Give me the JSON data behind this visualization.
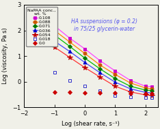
{
  "title_right": "HA suspensions (φ = 0.2)\nin 75/25 glycerin-water",
  "xlabel": "Log (shear rate, s⁻¹)",
  "ylabel": "Log (viscosity, Pa s)",
  "xlim": [
    -2,
    2.4
  ],
  "ylim": [
    -1,
    3
  ],
  "legend_title": "NaPAA conc.,\n     wt. %",
  "series": [
    {
      "label": "0.108",
      "marker_color": "#cc00cc",
      "line_color": "#ff44ff",
      "marker": "s",
      "filled": true,
      "has_line": true,
      "x": [
        -1.0,
        -0.5,
        0.0,
        0.5,
        1.0,
        1.5,
        2.0,
        2.2
      ],
      "y": [
        2.18,
        1.7,
        1.28,
        0.82,
        0.42,
        0.05,
        -0.18,
        -0.2
      ]
    },
    {
      "label": "0.088",
      "marker_color": "#cc5500",
      "line_color": "#ff8800",
      "marker": "o",
      "filled": true,
      "has_line": true,
      "x": [
        -1.0,
        -0.5,
        0.0,
        0.5,
        1.0,
        1.5,
        2.0,
        2.2
      ],
      "y": [
        2.0,
        1.55,
        1.1,
        0.65,
        0.28,
        -0.05,
        -0.25,
        -0.28
      ]
    },
    {
      "label": "0.071",
      "marker_color": "#007700",
      "line_color": "#00bb00",
      "marker": "D",
      "filled": true,
      "has_line": true,
      "x": [
        -1.0,
        -0.5,
        0.0,
        0.5,
        1.0,
        1.5,
        2.0,
        2.2
      ],
      "y": [
        1.82,
        1.38,
        0.92,
        0.5,
        0.12,
        -0.18,
        -0.33,
        -0.35
      ]
    },
    {
      "label": "0.036",
      "marker_color": "#0000cc",
      "line_color": "#4444ff",
      "marker": "^",
      "filled": true,
      "has_line": true,
      "x": [
        -1.0,
        -0.5,
        0.0,
        0.5,
        1.0,
        1.5,
        2.0,
        2.2
      ],
      "y": [
        1.58,
        1.18,
        0.75,
        0.35,
        -0.02,
        -0.28,
        -0.42,
        -0.44
      ]
    },
    {
      "label": "0.054",
      "marker_color": "#bb0000",
      "line_color": "#ff3333",
      "marker": "*",
      "filled": true,
      "has_line": true,
      "x": [
        -1.0,
        -0.5,
        0.0,
        0.5,
        1.0,
        1.5,
        2.0,
        2.2
      ],
      "y": [
        1.35,
        0.95,
        0.55,
        0.18,
        -0.18,
        -0.4,
        -0.52,
        -0.54
      ]
    },
    {
      "label": "0.018",
      "marker_color": "#3333cc",
      "line_color": null,
      "marker": "s",
      "filled": false,
      "has_line": false,
      "x": [
        -1.0,
        -0.5,
        0.0,
        0.5,
        1.0,
        1.5,
        2.0,
        2.2
      ],
      "y": [
        0.35,
        0.05,
        -0.18,
        -0.35,
        -0.55,
        -0.6,
        -0.62,
        -0.63
      ]
    },
    {
      "label": "0.0",
      "marker_color": "#cc0000",
      "line_color": null,
      "marker": "D",
      "filled": true,
      "has_line": false,
      "x": [
        -1.0,
        -0.5,
        0.0,
        0.5,
        1.0,
        1.5,
        2.0,
        2.2
      ],
      "y": [
        -0.42,
        -0.42,
        -0.44,
        -0.44,
        -0.45,
        -0.46,
        -0.47,
        -0.47
      ]
    }
  ],
  "bg_color": "#f0f0e8",
  "annotation_color": "#5555ee",
  "annotation_fontstyle": "italic"
}
